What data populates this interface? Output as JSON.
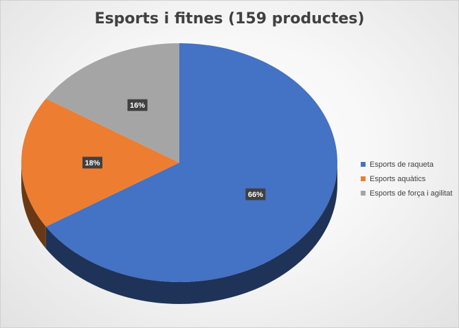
{
  "chart_data": {
    "type": "pie",
    "title": "Esports i fitnes (159 productes)",
    "categories": [
      "Esports de raqueta",
      "Esports aquàtics",
      "Esports de força i agilitat"
    ],
    "values": [
      66,
      18,
      16
    ],
    "labels": [
      "66%",
      "18%",
      "16%"
    ],
    "colors": [
      "#4472C4",
      "#ED7D31",
      "#A5A5A5"
    ],
    "legend_position": "right",
    "style": "3d"
  },
  "legend": {
    "items": [
      {
        "label": "Esports de raqueta",
        "color": "#4472C4"
      },
      {
        "label": "Esports aquàtics",
        "color": "#ED7D31"
      },
      {
        "label": "Esports de força i agilitat",
        "color": "#A5A5A5"
      }
    ]
  }
}
